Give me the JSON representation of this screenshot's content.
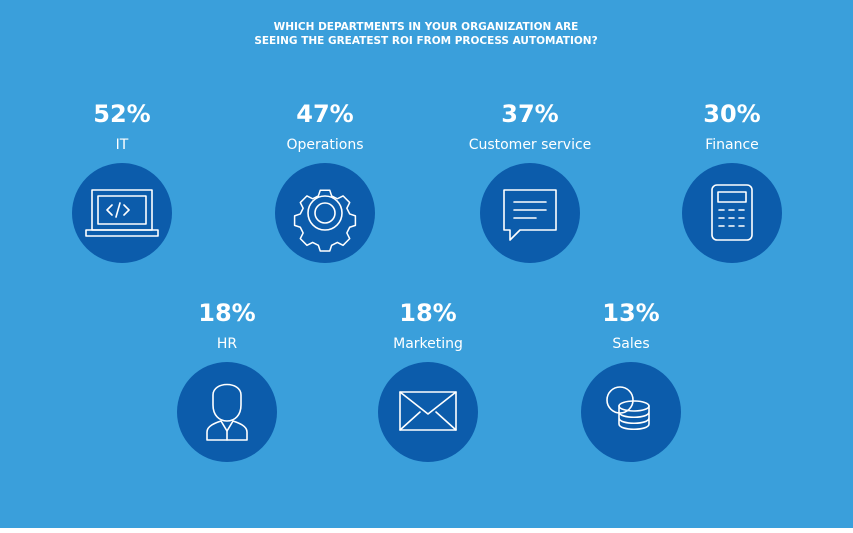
{
  "chart_data": {
    "type": "icon-stats",
    "title": [
      "WHICH DEPARTMENTS IN YOUR ORGANIZATION ARE",
      "SEEING THE GREATEST ROI FROM PROCESS AUTOMATION?"
    ],
    "categories": [
      "IT",
      "Operations",
      "Customer service",
      "Finance",
      "HR",
      "Marketing",
      "Sales"
    ],
    "values": [
      52,
      47,
      37,
      30,
      18,
      18,
      13
    ],
    "value_labels": [
      "52%",
      "47%",
      "37%",
      "30%",
      "18%",
      "18%",
      "13%"
    ],
    "color": "#0c5cab",
    "background": "#3a9fdb"
  }
}
